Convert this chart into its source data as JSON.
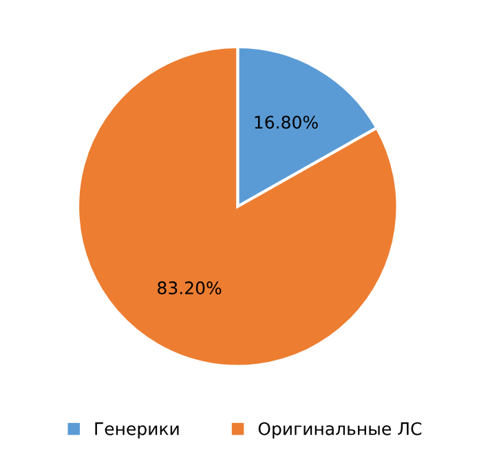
{
  "chart_data": {
    "type": "pie",
    "categories": [
      "Генерики",
      "Оригинальные ЛС"
    ],
    "values": [
      16.8,
      83.2
    ],
    "colors": [
      "#5b9bd5",
      "#ed7d31"
    ],
    "value_labels": [
      "16.80%",
      "83.20%"
    ],
    "legend": "bottom"
  }
}
